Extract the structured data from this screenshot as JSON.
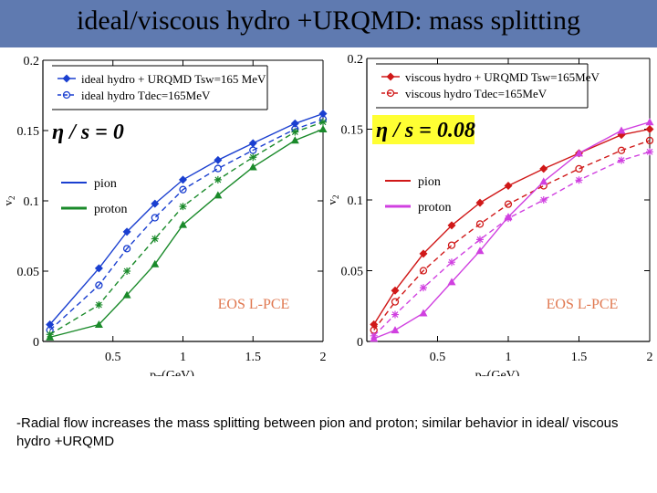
{
  "slide": {
    "title": "ideal/viscous hydro +URQMD:  mass splitting",
    "note": "-Radial flow increases the mass splitting between pion and proton; similar behavior in ideal/ viscous hydro +URQMD",
    "colors": {
      "title_bar": "#5f7ab0",
      "eta_box": "#ffff33",
      "eos_label": "#e07850"
    }
  },
  "chart_data": [
    {
      "type": "line",
      "ylabel": "v2",
      "xlabel": "pT(GeV)",
      "xlim": [
        0,
        2
      ],
      "ylim": [
        0,
        0.2
      ],
      "x_ticks": [
        "0.5",
        "1",
        "1.5",
        "2"
      ],
      "y_ticks": [
        "0",
        "0.05",
        "0.1",
        "0.15",
        "0.2"
      ],
      "annotation": "η / s = 0",
      "eos_label": "EOS L-PCE",
      "legend_markers": [
        "ideal hydro + URQMD Tsw=165 MeV",
        "ideal hydro Tdec=165MeV"
      ],
      "legend_colors": [
        "pion",
        "proton"
      ],
      "series": [
        {
          "species": "pion",
          "model": "hydro+urqmd",
          "color": "#1a3fd0",
          "dash": false,
          "marker": "diamond",
          "x": [
            0.05,
            0.4,
            0.6,
            0.8,
            1.0,
            1.25,
            1.5,
            1.8,
            2.0
          ],
          "y": [
            0.012,
            0.052,
            0.078,
            0.098,
            0.115,
            0.129,
            0.141,
            0.155,
            0.162
          ]
        },
        {
          "species": "pion",
          "model": "ideal-hydro",
          "color": "#1a3fd0",
          "dash": true,
          "marker": "circle",
          "x": [
            0.05,
            0.4,
            0.6,
            0.8,
            1.0,
            1.25,
            1.5,
            1.8,
            2.0
          ],
          "y": [
            0.008,
            0.04,
            0.066,
            0.088,
            0.108,
            0.123,
            0.136,
            0.151,
            0.158
          ]
        },
        {
          "species": "proton",
          "model": "hydro+urqmd",
          "color": "#1a8a2a",
          "dash": false,
          "marker": "triangle",
          "x": [
            0.05,
            0.4,
            0.6,
            0.8,
            1.0,
            1.25,
            1.5,
            1.8,
            2.0
          ],
          "y": [
            0.003,
            0.012,
            0.033,
            0.055,
            0.083,
            0.104,
            0.124,
            0.143,
            0.151
          ]
        },
        {
          "species": "proton",
          "model": "ideal-hydro",
          "color": "#1a8a2a",
          "dash": true,
          "marker": "star",
          "x": [
            0.05,
            0.4,
            0.6,
            0.8,
            1.0,
            1.25,
            1.5,
            1.8,
            2.0
          ],
          "y": [
            0.005,
            0.026,
            0.05,
            0.073,
            0.096,
            0.115,
            0.131,
            0.149,
            0.156
          ]
        }
      ]
    },
    {
      "type": "line",
      "ylabel": "v2",
      "xlabel": "pT(GeV)",
      "xlim": [
        0,
        2
      ],
      "ylim": [
        0,
        0.2
      ],
      "x_ticks": [
        "0.5",
        "1",
        "1.5",
        "2"
      ],
      "y_ticks": [
        "0",
        "0.05",
        "0.1",
        "0.15",
        "0.2"
      ],
      "annotation": "η / s = 0.08",
      "eos_label": "EOS L-PCE",
      "legend_markers": [
        "viscous hydro + URQMD Tsw=165MeV",
        "viscous hydro Tdec=165MeV"
      ],
      "legend_colors": [
        "pion",
        "proton"
      ],
      "series": [
        {
          "species": "pion",
          "model": "hydro+urqmd",
          "color": "#d01818",
          "dash": false,
          "marker": "diamond",
          "x": [
            0.05,
            0.2,
            0.4,
            0.6,
            0.8,
            1.0,
            1.25,
            1.5,
            1.8,
            2.0
          ],
          "y": [
            0.012,
            0.036,
            0.062,
            0.082,
            0.098,
            0.11,
            0.122,
            0.133,
            0.146,
            0.15
          ]
        },
        {
          "species": "pion",
          "model": "viscous-hydro",
          "color": "#d01818",
          "dash": true,
          "marker": "circle",
          "x": [
            0.05,
            0.2,
            0.4,
            0.6,
            0.8,
            1.0,
            1.25,
            1.5,
            1.8,
            2.0
          ],
          "y": [
            0.008,
            0.028,
            0.05,
            0.068,
            0.083,
            0.097,
            0.11,
            0.122,
            0.135,
            0.142
          ]
        },
        {
          "species": "proton",
          "model": "hydro+urqmd",
          "color": "#d040e0",
          "dash": false,
          "marker": "triangle",
          "x": [
            0.05,
            0.2,
            0.4,
            0.6,
            0.8,
            1.0,
            1.25,
            1.5,
            1.8,
            2.0
          ],
          "y": [
            0.002,
            0.008,
            0.02,
            0.042,
            0.064,
            0.088,
            0.113,
            0.133,
            0.149,
            0.155
          ]
        },
        {
          "species": "proton",
          "model": "viscous-hydro",
          "color": "#d040e0",
          "dash": true,
          "marker": "star",
          "x": [
            0.05,
            0.2,
            0.4,
            0.6,
            0.8,
            1.0,
            1.25,
            1.5,
            1.8,
            2.0
          ],
          "y": [
            0.004,
            0.019,
            0.038,
            0.056,
            0.072,
            0.087,
            0.1,
            0.114,
            0.128,
            0.134
          ]
        }
      ]
    }
  ]
}
